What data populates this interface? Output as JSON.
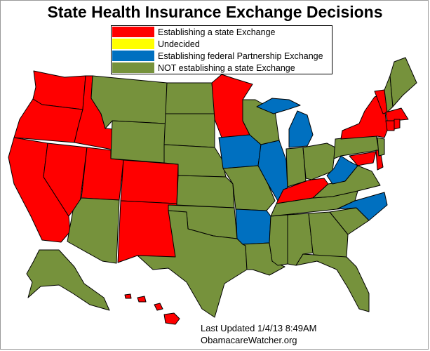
{
  "title": "State Health Insurance Exchange Decisions",
  "legend": [
    {
      "label": "Establishing a state Exchange",
      "color": "#ff0000"
    },
    {
      "label": "Undecided",
      "color": "#ffff00"
    },
    {
      "label": "Establishing federal Partnership Exchange",
      "color": "#0070c0"
    },
    {
      "label": "NOT establishing a state Exchange",
      "color": "#76923c"
    }
  ],
  "footer": {
    "updated": "Last Updated 1/4/13 8:49AM",
    "source": "ObamacareWatcher.org"
  }
}
